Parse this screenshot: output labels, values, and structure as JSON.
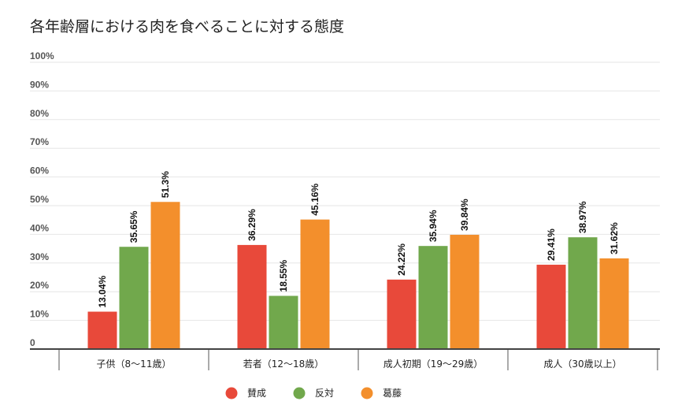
{
  "chart_data": {
    "type": "bar",
    "title": "各年齢層における肉を食べることに対する態度",
    "xlabel": "",
    "ylabel": "",
    "ylim": [
      0,
      100
    ],
    "yticks": [
      "0",
      "10%",
      "20%",
      "30%",
      "40%",
      "50%",
      "60%",
      "70%",
      "80%",
      "90%",
      "100%"
    ],
    "grid": true,
    "legend_position": "bottom",
    "categories": [
      "子供（8〜11歳）",
      "若者（12〜18歳）",
      "成人初期（19〜29歳）",
      "成人（30歳以上）"
    ],
    "series": [
      {
        "name": "賛成",
        "color": "#e8493a",
        "values": [
          13.04,
          36.29,
          24.22,
          29.41
        ],
        "labels": [
          "13.04%",
          "36.29%",
          "24.22%",
          "29.41%"
        ]
      },
      {
        "name": "反対",
        "color": "#71a84c",
        "values": [
          35.65,
          18.55,
          35.94,
          38.97
        ],
        "labels": [
          "35.65%",
          "18.55%",
          "35.94%",
          "38.97%"
        ]
      },
      {
        "name": "葛藤",
        "color": "#f38f2c",
        "values": [
          51.3,
          45.16,
          39.84,
          31.62
        ],
        "labels": [
          "51.3%",
          "45.16%",
          "39.84%",
          "31.62%"
        ]
      }
    ]
  }
}
